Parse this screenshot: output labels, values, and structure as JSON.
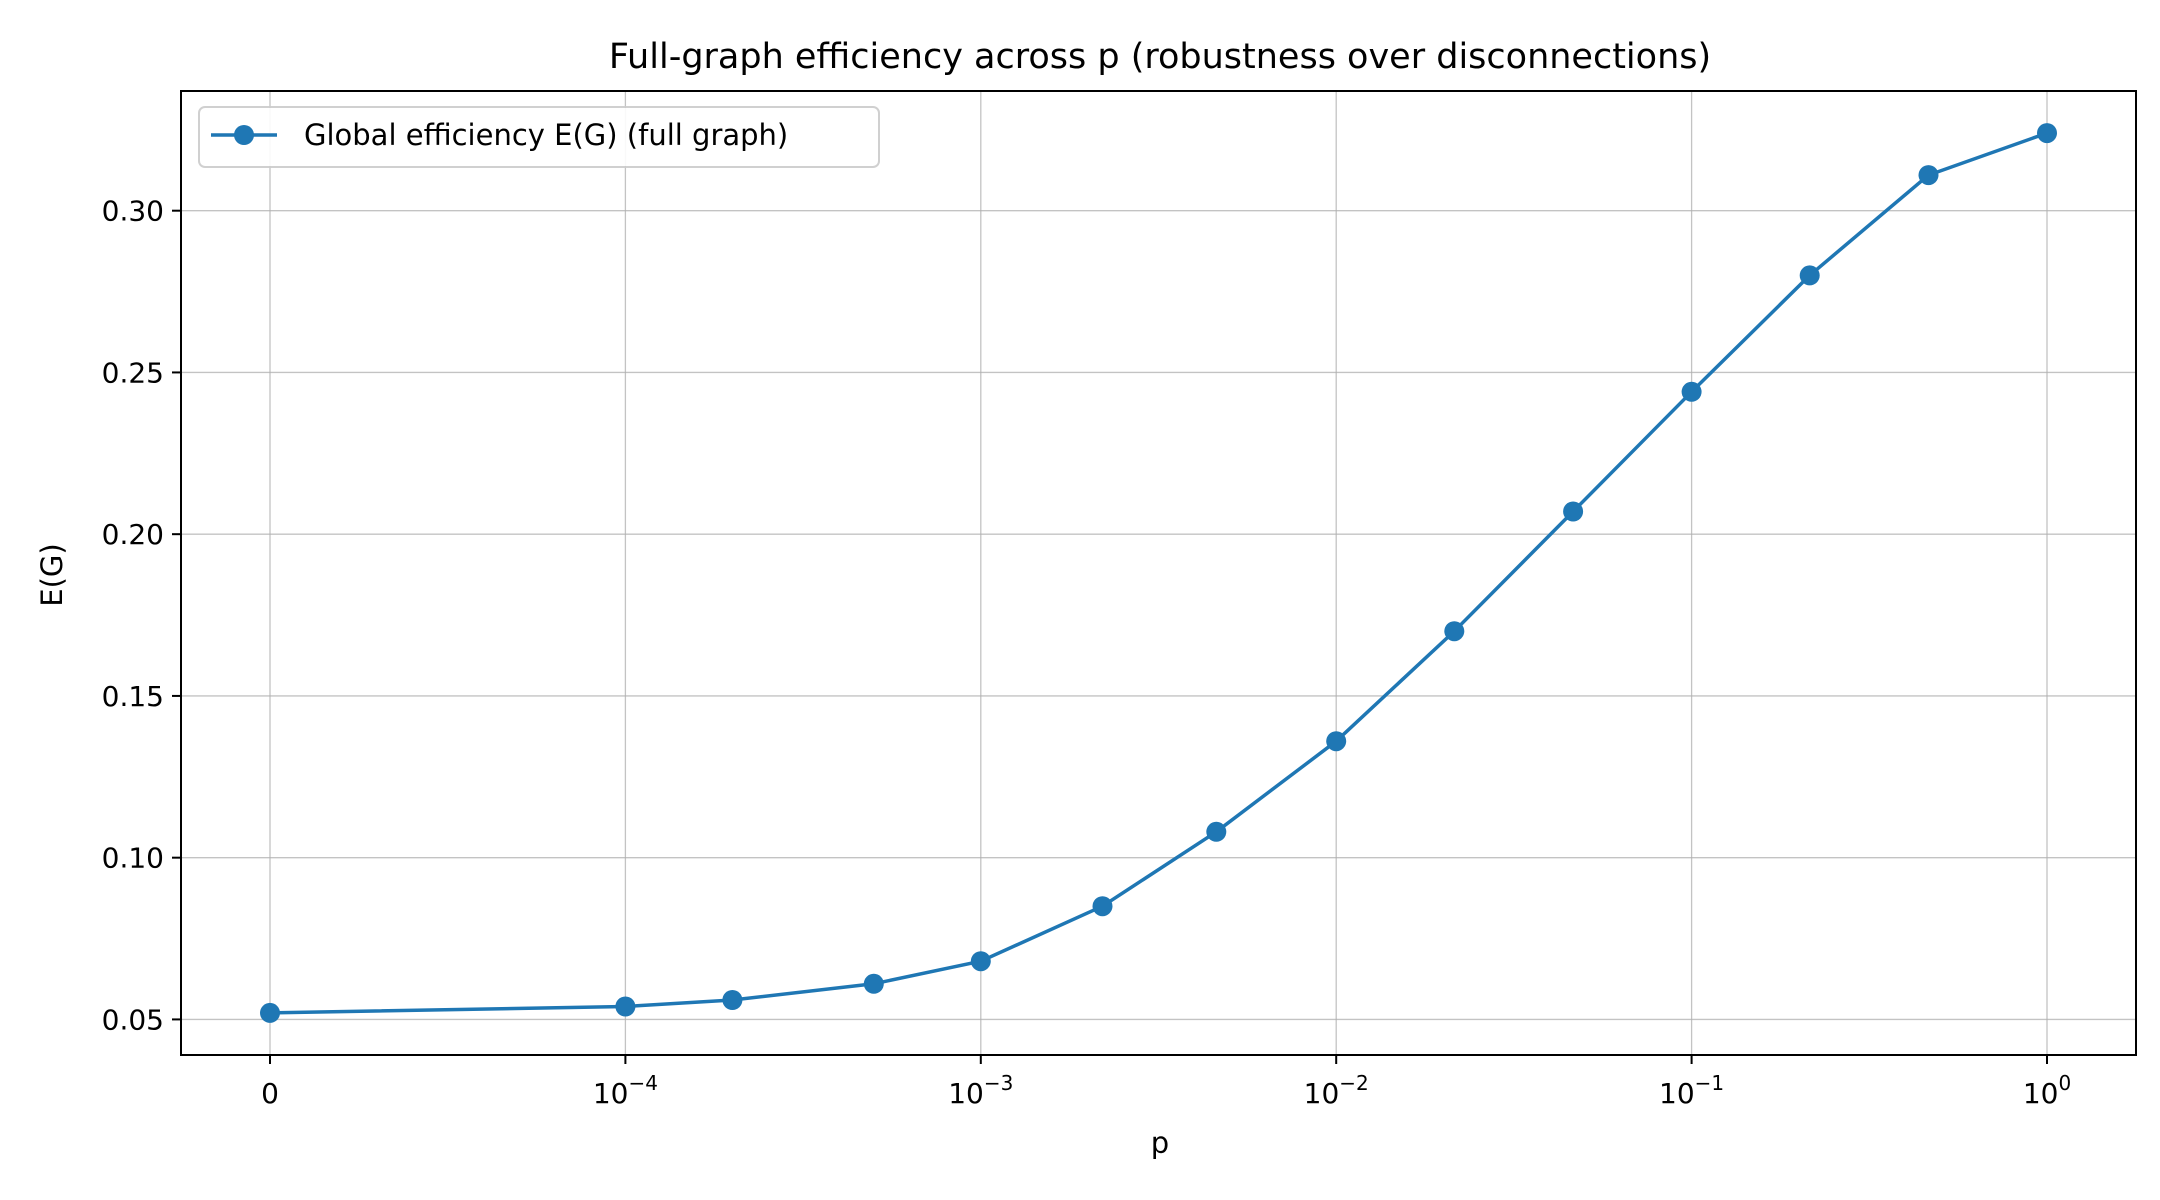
{
  "chart_data": {
    "type": "line",
    "title": "Full-graph efficiency across p (robustness over disconnections)",
    "xlabel": "p",
    "ylabel": "E(G)",
    "x_scale": "symlog",
    "x_ticks": [
      {
        "value": 0,
        "base": "0",
        "exp": ""
      },
      {
        "value": 0.0001,
        "base": "10",
        "exp": "−4"
      },
      {
        "value": 0.001,
        "base": "10",
        "exp": "−3"
      },
      {
        "value": 0.01,
        "base": "10",
        "exp": "−2"
      },
      {
        "value": 0.1,
        "base": "10",
        "exp": "−1"
      },
      {
        "value": 1,
        "base": "10",
        "exp": "0"
      }
    ],
    "y_ticks": [
      "0.05",
      "0.10",
      "0.15",
      "0.20",
      "0.25",
      "0.30"
    ],
    "ylim": [
      0.039,
      0.337
    ],
    "grid": true,
    "legend_position": "top-left",
    "series": [
      {
        "name": "Global efficiency E(G) (full graph)",
        "color": "#1f77b4",
        "marker": "circle",
        "points": [
          {
            "x": 0,
            "y": 0.052
          },
          {
            "x": 0.0001,
            "y": 0.054
          },
          {
            "x": 0.0002,
            "y": 0.056
          },
          {
            "x": 0.0005,
            "y": 0.061
          },
          {
            "x": 0.001,
            "y": 0.068
          },
          {
            "x": 0.0022,
            "y": 0.085
          },
          {
            "x": 0.0046,
            "y": 0.108
          },
          {
            "x": 0.01,
            "y": 0.136
          },
          {
            "x": 0.0215,
            "y": 0.17
          },
          {
            "x": 0.0464,
            "y": 0.207
          },
          {
            "x": 0.1,
            "y": 0.244
          },
          {
            "x": 0.215,
            "y": 0.28
          },
          {
            "x": 0.464,
            "y": 0.311
          },
          {
            "x": 1,
            "y": 0.324
          }
        ]
      }
    ]
  }
}
